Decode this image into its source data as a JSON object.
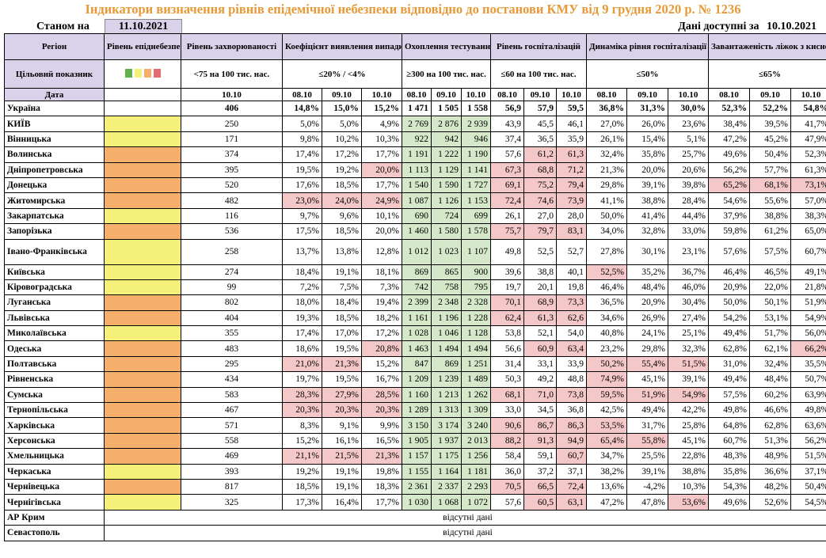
{
  "title": "Індикатори визначення рівнів епідемічної небезпеки відповідно до постанови КМУ від 9 грудня 2020 р. № 1236",
  "as_of_label": "Станом на",
  "as_of_date": "11.10.2021",
  "data_available_label": "Дані доступні за",
  "data_available_date": "10.10.2021",
  "headers": {
    "region": "Регіон",
    "level": "Рівень епіднебезпеки",
    "incidence": "Рівень захворюваності",
    "detection": "Коефіцієнт виявлення випадків інфікування",
    "testing": "Охоплення тестуванням",
    "hosp": "Рівень госпіталізацій",
    "hosp_dyn": "Динаміка рівня госпіталізації",
    "oxygen": "Завантаженість ліжок з киснем"
  },
  "target": {
    "label": "Цільовий показник",
    "incidence": "<75 на 100 тис. нас.",
    "detection": "≤20% / <4%",
    "testing": "≥300 на 100 тис. нас.",
    "hosp": "≤60 на 100 тис. нас.",
    "hosp_dyn": "≤50%",
    "oxygen": "≤65%",
    "level_colors": [
      "#5fb24a",
      "#f5f07a",
      "#f5ae6b",
      "#e36a73"
    ]
  },
  "date_row": {
    "label": "Дата",
    "incidence": "10.10",
    "dates": [
      "08.10",
      "09.10",
      "10.10"
    ]
  },
  "rows": [
    {
      "name": "Україна",
      "level": "w",
      "inc": "406",
      "det": [
        "14,8%",
        "15,0%",
        "15,2%"
      ],
      "test": [
        "1 471",
        "1 505",
        "1 558"
      ],
      "hosp": [
        "56,9",
        "57,9",
        "59,5"
      ],
      "dyn": [
        "36,8%",
        "31,3%",
        "30,0%"
      ],
      "oxy": [
        "52,3%",
        "52,2%",
        "54,8%"
      ],
      "bold": true,
      "hl": {}
    },
    {
      "name": "КИЇВ",
      "level": "y",
      "inc": "250",
      "det": [
        "5,0%",
        "5,0%",
        "4,9%"
      ],
      "test": [
        "2 769",
        "2 876",
        "2 939"
      ],
      "hosp": [
        "43,9",
        "45,5",
        "46,1"
      ],
      "dyn": [
        "27,0%",
        "26,0%",
        "23,6%"
      ],
      "oxy": [
        "38,4%",
        "39,5%",
        "41,7%"
      ],
      "hl": {}
    },
    {
      "name": "Вінницька",
      "level": "y",
      "inc": "171",
      "det": [
        "9,8%",
        "10,2%",
        "10,3%"
      ],
      "test": [
        "922",
        "942",
        "946"
      ],
      "hosp": [
        "37,4",
        "36,5",
        "35,9"
      ],
      "dyn": [
        "26,1%",
        "15,4%",
        "5,1%"
      ],
      "oxy": [
        "47,2%",
        "45,2%",
        "47,9%"
      ],
      "hl": {}
    },
    {
      "name": "Волинська",
      "level": "o",
      "inc": "374",
      "det": [
        "17,4%",
        "17,2%",
        "17,7%"
      ],
      "test": [
        "1 191",
        "1 222",
        "1 190"
      ],
      "hosp": [
        "57,6",
        "61,2",
        "61,3"
      ],
      "dyn": [
        "32,4%",
        "35,8%",
        "25,7%"
      ],
      "oxy": [
        "49,6%",
        "50,4%",
        "52,3%"
      ],
      "hl": {
        "hosp": [
          1,
          2
        ]
      }
    },
    {
      "name": "Дніпропетровська",
      "level": "o",
      "inc": "395",
      "det": [
        "19,5%",
        "19,2%",
        "20,0%"
      ],
      "test": [
        "1 113",
        "1 129",
        "1 141"
      ],
      "hosp": [
        "67,3",
        "68,8",
        "71,2"
      ],
      "dyn": [
        "21,3%",
        "20,0%",
        "20,6%"
      ],
      "oxy": [
        "56,2%",
        "57,7%",
        "61,3%"
      ],
      "hl": {
        "det": [
          2
        ],
        "hosp": [
          0,
          1,
          2
        ]
      }
    },
    {
      "name": "Донецька",
      "level": "o",
      "inc": "520",
      "det": [
        "17,6%",
        "18,5%",
        "17,7%"
      ],
      "test": [
        "1 540",
        "1 590",
        "1 727"
      ],
      "hosp": [
        "69,1",
        "75,2",
        "79,4"
      ],
      "dyn": [
        "29,8%",
        "39,1%",
        "39,8%"
      ],
      "oxy": [
        "65,2%",
        "68,1%",
        "73,1%"
      ],
      "hl": {
        "hosp": [
          0,
          1,
          2
        ],
        "oxy": [
          0,
          1,
          2
        ]
      }
    },
    {
      "name": "Житомирська",
      "level": "o",
      "inc": "482",
      "det": [
        "23,0%",
        "24,0%",
        "24,9%"
      ],
      "test": [
        "1 087",
        "1 126",
        "1 153"
      ],
      "hosp": [
        "72,4",
        "74,6",
        "73,9"
      ],
      "dyn": [
        "41,1%",
        "38,8%",
        "28,4%"
      ],
      "oxy": [
        "54,6%",
        "55,6%",
        "57,0%"
      ],
      "hl": {
        "det": [
          0,
          1,
          2
        ],
        "hosp": [
          0,
          1,
          2
        ]
      }
    },
    {
      "name": "Закарпатська",
      "level": "y",
      "inc": "116",
      "det": [
        "9,7%",
        "9,6%",
        "10,1%"
      ],
      "test": [
        "690",
        "724",
        "699"
      ],
      "hosp": [
        "26,1",
        "27,0",
        "28,0"
      ],
      "dyn": [
        "50,0%",
        "41,4%",
        "44,4%"
      ],
      "oxy": [
        "37,9%",
        "38,8%",
        "38,3%"
      ],
      "hl": {}
    },
    {
      "name": "Запорізька",
      "level": "o",
      "inc": "536",
      "det": [
        "17,5%",
        "18,5%",
        "20,0%"
      ],
      "test": [
        "1 460",
        "1 580",
        "1 578"
      ],
      "hosp": [
        "75,7",
        "79,7",
        "83,1"
      ],
      "dyn": [
        "34,0%",
        "32,8%",
        "33,0%"
      ],
      "oxy": [
        "59,8%",
        "61,2%",
        "65,0%"
      ],
      "hl": {
        "hosp": [
          0,
          1,
          2
        ]
      }
    },
    {
      "name": "Івано-Франківська",
      "level": "y",
      "inc": "258",
      "det": [
        "13,7%",
        "13,8%",
        "12,8%"
      ],
      "test": [
        "1 012",
        "1 023",
        "1 107"
      ],
      "hosp": [
        "49,8",
        "52,5",
        "52,7"
      ],
      "dyn": [
        "27,8%",
        "30,1%",
        "23,1%"
      ],
      "oxy": [
        "57,6%",
        "57,5%",
        "60,7%"
      ],
      "tall": true,
      "hl": {}
    },
    {
      "name": "Київська",
      "level": "y",
      "inc": "274",
      "det": [
        "18,4%",
        "19,1%",
        "18,1%"
      ],
      "test": [
        "869",
        "865",
        "900"
      ],
      "hosp": [
        "39,6",
        "38,8",
        "40,1"
      ],
      "dyn": [
        "52,5%",
        "35,2%",
        "36,7%"
      ],
      "oxy": [
        "46,4%",
        "46,5%",
        "49,1%"
      ],
      "hl": {
        "dyn": [
          0
        ]
      }
    },
    {
      "name": "Кіровоградська",
      "level": "y",
      "inc": "99",
      "det": [
        "7,2%",
        "7,5%",
        "7,3%"
      ],
      "test": [
        "742",
        "758",
        "795"
      ],
      "hosp": [
        "19,7",
        "20,1",
        "19,8"
      ],
      "dyn": [
        "46,4%",
        "48,4%",
        "46,0%"
      ],
      "oxy": [
        "20,9%",
        "22,0%",
        "21,8%"
      ],
      "hl": {}
    },
    {
      "name": "Луганська",
      "level": "o",
      "inc": "802",
      "det": [
        "18,0%",
        "18,4%",
        "19,4%"
      ],
      "test": [
        "2 399",
        "2 348",
        "2 328"
      ],
      "hosp": [
        "70,1",
        "68,9",
        "73,3"
      ],
      "dyn": [
        "36,5%",
        "20,9%",
        "30,4%"
      ],
      "oxy": [
        "50,0%",
        "50,1%",
        "51,9%"
      ],
      "hl": {
        "hosp": [
          0,
          1,
          2
        ]
      }
    },
    {
      "name": "Львівська",
      "level": "o",
      "inc": "404",
      "det": [
        "19,3%",
        "18,5%",
        "18,2%"
      ],
      "test": [
        "1 161",
        "1 196",
        "1 228"
      ],
      "hosp": [
        "62,4",
        "61,3",
        "62,6"
      ],
      "dyn": [
        "34,6%",
        "26,9%",
        "27,4%"
      ],
      "oxy": [
        "54,2%",
        "53,1%",
        "54,9%"
      ],
      "hl": {
        "hosp": [
          0,
          1,
          2
        ]
      }
    },
    {
      "name": "Миколаївська",
      "level": "y",
      "inc": "355",
      "det": [
        "17,4%",
        "17,0%",
        "17,2%"
      ],
      "test": [
        "1 028",
        "1 046",
        "1 128"
      ],
      "hosp": [
        "53,8",
        "52,1",
        "54,0"
      ],
      "dyn": [
        "40,8%",
        "24,1%",
        "25,1%"
      ],
      "oxy": [
        "49,4%",
        "51,7%",
        "56,0%"
      ],
      "hl": {}
    },
    {
      "name": "Одеська",
      "level": "o",
      "inc": "483",
      "det": [
        "18,6%",
        "19,5%",
        "20,8%"
      ],
      "test": [
        "1 463",
        "1 494",
        "1 494"
      ],
      "hosp": [
        "56,6",
        "60,9",
        "63,4"
      ],
      "dyn": [
        "23,2%",
        "29,8%",
        "32,3%"
      ],
      "oxy": [
        "62,8%",
        "62,1%",
        "66,2%"
      ],
      "hl": {
        "det": [
          2
        ],
        "hosp": [
          1,
          2
        ],
        "oxy": [
          2
        ]
      }
    },
    {
      "name": "Полтавська",
      "level": "o",
      "inc": "295",
      "det": [
        "21,0%",
        "21,3%",
        "15,2%"
      ],
      "test": [
        "847",
        "869",
        "1 251"
      ],
      "hosp": [
        "31,4",
        "33,1",
        "33,9"
      ],
      "dyn": [
        "50,2%",
        "55,4%",
        "51,5%"
      ],
      "oxy": [
        "31,0%",
        "32,4%",
        "35,5%"
      ],
      "hl": {
        "det": [
          0,
          1
        ],
        "dyn": [
          0,
          1,
          2
        ]
      }
    },
    {
      "name": "Рівненська",
      "level": "o",
      "inc": "434",
      "det": [
        "19,7%",
        "19,5%",
        "16,7%"
      ],
      "test": [
        "1 209",
        "1 239",
        "1 489"
      ],
      "hosp": [
        "50,3",
        "49,2",
        "48,8"
      ],
      "dyn": [
        "74,9%",
        "45,1%",
        "39,1%"
      ],
      "oxy": [
        "49,4%",
        "48,4%",
        "50,7%"
      ],
      "hl": {
        "dyn": [
          0
        ]
      }
    },
    {
      "name": "Сумська",
      "level": "o",
      "inc": "583",
      "det": [
        "28,3%",
        "27,9%",
        "28,5%"
      ],
      "test": [
        "1 160",
        "1 213",
        "1 262"
      ],
      "hosp": [
        "68,1",
        "71,0",
        "73,8"
      ],
      "dyn": [
        "59,5%",
        "51,9%",
        "54,9%"
      ],
      "oxy": [
        "57,5%",
        "60,2%",
        "63,9%"
      ],
      "hl": {
        "det": [
          0,
          1,
          2
        ],
        "hosp": [
          0,
          1,
          2
        ],
        "dyn": [
          0,
          1,
          2
        ]
      }
    },
    {
      "name": "Тернопільська",
      "level": "o",
      "inc": "467",
      "det": [
        "20,3%",
        "20,3%",
        "20,3%"
      ],
      "test": [
        "1 289",
        "1 313",
        "1 309"
      ],
      "hosp": [
        "33,0",
        "34,5",
        "36,8"
      ],
      "dyn": [
        "42,5%",
        "49,4%",
        "42,2%"
      ],
      "oxy": [
        "49,8%",
        "46,6%",
        "49,8%"
      ],
      "hl": {
        "det": [
          0,
          1,
          2
        ]
      }
    },
    {
      "name": "Харківська",
      "level": "o",
      "inc": "571",
      "det": [
        "8,3%",
        "9,1%",
        "9,9%"
      ],
      "test": [
        "3 150",
        "3 174",
        "3 240"
      ],
      "hosp": [
        "90,6",
        "86,7",
        "86,3"
      ],
      "dyn": [
        "53,5%",
        "31,7%",
        "25,8%"
      ],
      "oxy": [
        "64,8%",
        "62,8%",
        "63,6%"
      ],
      "hl": {
        "hosp": [
          0,
          1,
          2
        ],
        "dyn": [
          0
        ]
      }
    },
    {
      "name": "Херсонська",
      "level": "o",
      "inc": "558",
      "det": [
        "15,2%",
        "16,1%",
        "16,5%"
      ],
      "test": [
        "1 905",
        "1 937",
        "2 013"
      ],
      "hosp": [
        "88,2",
        "91,3",
        "94,9"
      ],
      "dyn": [
        "65,4%",
        "55,8%",
        "45,1%"
      ],
      "oxy": [
        "60,7%",
        "51,3%",
        "56,2%"
      ],
      "hl": {
        "hosp": [
          0,
          1,
          2
        ],
        "dyn": [
          0,
          1
        ]
      }
    },
    {
      "name": "Хмельницька",
      "level": "o",
      "inc": "469",
      "det": [
        "21,1%",
        "21,5%",
        "21,3%"
      ],
      "test": [
        "1 157",
        "1 175",
        "1 256"
      ],
      "hosp": [
        "58,4",
        "59,1",
        "60,7"
      ],
      "dyn": [
        "34,7%",
        "25,5%",
        "22,8%"
      ],
      "oxy": [
        "48,3%",
        "48,9%",
        "51,5%"
      ],
      "hl": {
        "det": [
          0,
          1,
          2
        ],
        "hosp": [
          2
        ]
      }
    },
    {
      "name": "Черкаська",
      "level": "y",
      "inc": "393",
      "det": [
        "19,2%",
        "19,1%",
        "19,8%"
      ],
      "test": [
        "1 155",
        "1 164",
        "1 181"
      ],
      "hosp": [
        "36,0",
        "37,2",
        "37,1"
      ],
      "dyn": [
        "38,2%",
        "39,1%",
        "38,8%"
      ],
      "oxy": [
        "35,8%",
        "36,6%",
        "37,1%"
      ],
      "hl": {}
    },
    {
      "name": "Чернівецька",
      "level": "o",
      "inc": "817",
      "det": [
        "18,5%",
        "19,1%",
        "18,3%"
      ],
      "test": [
        "2 361",
        "2 337",
        "2 293"
      ],
      "hosp": [
        "70,5",
        "66,5",
        "72,4"
      ],
      "dyn": [
        "13,6%",
        "-4,2%",
        "10,3%"
      ],
      "oxy": [
        "54,3%",
        "48,2%",
        "50,4%"
      ],
      "hl": {
        "hosp": [
          0,
          1,
          2
        ]
      }
    },
    {
      "name": "Чернігівська",
      "level": "y",
      "inc": "325",
      "det": [
        "17,3%",
        "16,4%",
        "17,7%"
      ],
      "test": [
        "1 030",
        "1 068",
        "1 072"
      ],
      "hosp": [
        "57,6",
        "60,5",
        "63,1"
      ],
      "dyn": [
        "47,2%",
        "47,8%",
        "53,6%"
      ],
      "oxy": [
        "49,6%",
        "52,6%",
        "54,5%"
      ],
      "hl": {
        "hosp": [
          1,
          2
        ],
        "dyn": [
          2
        ]
      }
    }
  ],
  "absent_rows": [
    {
      "name": "АР Крим",
      "text": "відсутні дані"
    },
    {
      "name": "Севастополь",
      "text": "відсутні дані"
    }
  ]
}
